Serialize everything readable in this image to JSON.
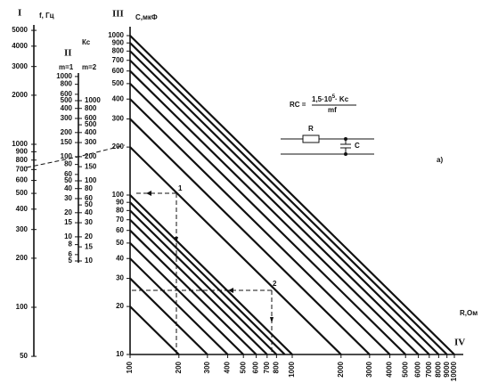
{
  "scale_I": {
    "numeral": "I",
    "label": "f, Гц",
    "ticks": [
      5000,
      4000,
      3000,
      2000,
      1000,
      900,
      800,
      700,
      600,
      500,
      400,
      300,
      200,
      100,
      50
    ]
  },
  "scale_II": {
    "numeral": "II",
    "label": "Кс",
    "left_header": "m=1",
    "right_header": "m=2",
    "left_ticks": [
      1000,
      800,
      600,
      500,
      400,
      300,
      200,
      150,
      100,
      80,
      60,
      50,
      40,
      30,
      20,
      15,
      10,
      8,
      6,
      5
    ],
    "right_ticks": [
      1000,
      800,
      600,
      500,
      400,
      300,
      200,
      150,
      100,
      80,
      60,
      50,
      40,
      30,
      20,
      15,
      10
    ]
  },
  "scale_III": {
    "numeral": "III",
    "label": "C,мкФ",
    "ticks": [
      1000,
      900,
      800,
      700,
      600,
      500,
      400,
      300,
      200,
      100,
      90,
      80,
      70,
      60,
      50,
      40,
      30,
      20,
      10
    ]
  },
  "scale_IV": {
    "numeral": "IV",
    "label": "R,Ом",
    "ticks": [
      100,
      200,
      300,
      400,
      500,
      600,
      700,
      800,
      1000,
      2000,
      3000,
      4000,
      5000,
      6000,
      7000,
      8000,
      9000,
      10000
    ]
  },
  "formula": {
    "lhs": "RC =",
    "numerator": "1,5·10",
    "exponent": "5",
    "numerator_rest": "· Kc",
    "denominator": "mf"
  },
  "circuit": {
    "r_label": "R",
    "c_label": "C"
  },
  "figure_label": "а)",
  "examples": [
    "1",
    "2"
  ]
}
